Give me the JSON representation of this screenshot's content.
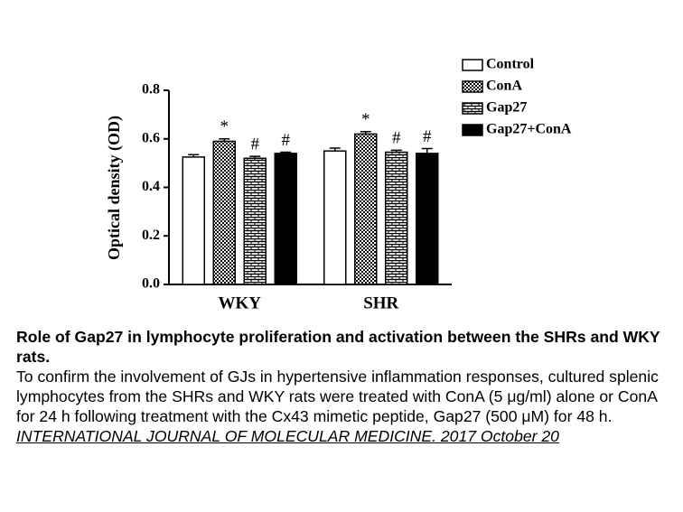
{
  "chart_data": {
    "type": "bar",
    "ylabel": "Optical density (OD)",
    "categories": [
      "WKY",
      "SHR"
    ],
    "series": [
      {
        "name": "Control",
        "color": "#ffffff",
        "pattern": "none",
        "values": [
          0.525,
          0.55
        ],
        "errors": [
          0.01,
          0.012
        ]
      },
      {
        "name": "ConA",
        "color": "#000000",
        "pattern": "checker",
        "values": [
          0.59,
          0.62
        ],
        "errors": [
          0.01,
          0.01
        ],
        "annotations": [
          "*",
          "*"
        ]
      },
      {
        "name": "Gap27",
        "color": "#000000",
        "pattern": "brick",
        "values": [
          0.52,
          0.545
        ],
        "errors": [
          0.008,
          0.008
        ],
        "annotations": [
          "#",
          "#"
        ]
      },
      {
        "name": "Gap27+ConA",
        "color": "#000000",
        "pattern": "solid",
        "values": [
          0.54,
          0.54
        ],
        "errors": [
          0.005,
          0.02
        ],
        "annotations": [
          "#",
          "#"
        ]
      }
    ],
    "ylim": [
      0,
      0.8
    ],
    "yticks": [
      {
        "value": 0,
        "label": "0.0"
      },
      0.2,
      0.4,
      0.6,
      0.8
    ],
    "legend": "top-right",
    "grid": false
  },
  "caption": {
    "title": "Role of Gap27 in lymphocyte proliferation and activation between the SHRs and WKY rats.",
    "body": "To confirm the involvement of GJs in hypertensive inflammation responses, cultured splenic lymphocytes from the SHRs and WKY rats were treated with ConA (5 μg/ml) alone or ConA for 24 h following treatment with the Cx43 mimetic peptide, Gap27 (500 μM) for 48 h.",
    "citation": "INTERNATIONAL JOURNAL OF MOLECULAR MEDICINE. 2017 October 20"
  }
}
